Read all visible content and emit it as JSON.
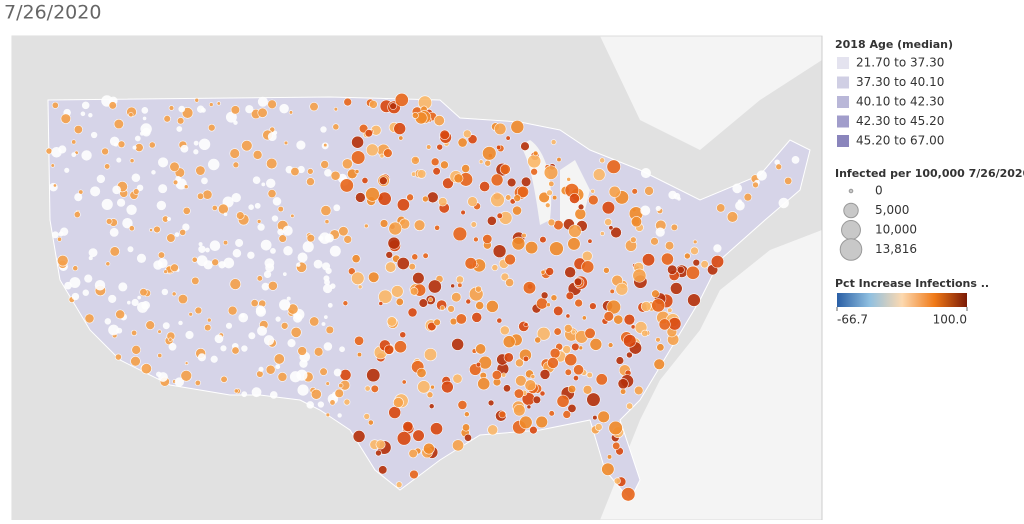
{
  "title": "7/26/2020",
  "age_legend": {
    "title": "2018 Age (median)",
    "items": [
      {
        "label": "21.70 to 37.30",
        "color": "#e4e3ef"
      },
      {
        "label": "37.30 to 40.10",
        "color": "#d0cfe4"
      },
      {
        "label": "40.10 to 42.30",
        "color": "#b9b7d8"
      },
      {
        "label": "42.30 to 45.20",
        "color": "#a19dcb"
      },
      {
        "label": "45.20 to 67.00",
        "color": "#8a85bc"
      }
    ]
  },
  "size_legend": {
    "title": "Infected per 100,000 7/26/2020",
    "items": [
      0,
      {
        "value": 5000,
        "label": "5,000"
      },
      {
        "value": 10000,
        "label": "10,000"
      },
      {
        "value": 13816,
        "label": "13,816"
      }
    ]
  },
  "color_legend": {
    "title": "Pct Increase Infections ..",
    "min": {
      "value": -66.7,
      "label": "-66.7"
    },
    "max": {
      "value": 100,
      "label": "100.0"
    },
    "colors": [
      "#2a5fa5",
      "#8fbfe0",
      "#fcd9b0",
      "#f07a18",
      "#7a1a06"
    ]
  }
}
